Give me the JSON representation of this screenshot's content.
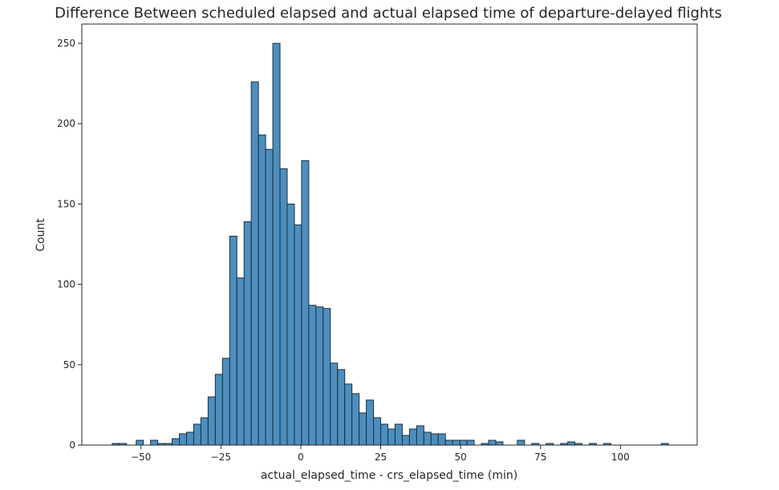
{
  "chart_data": {
    "type": "bar",
    "title": "Difference Between scheduled elapsed and actual elapsed time of departure-delayed flights",
    "xlabel": "actual_elapsed_time - crs_elapsed_time (min)",
    "ylabel": "Count",
    "xlim": [
      -68.5,
      124
    ],
    "ylim": [
      0,
      262
    ],
    "xticks": [
      -50,
      -25,
      0,
      25,
      50,
      75,
      100
    ],
    "xtick_labels": [
      "−50",
      "−25",
      "0",
      "25",
      "50",
      "75",
      "100"
    ],
    "yticks": [
      0,
      50,
      100,
      150,
      200,
      250
    ],
    "ytick_labels": [
      "0",
      "50",
      "100",
      "150",
      "200",
      "250"
    ],
    "grid": false,
    "bin_width": 2.25,
    "bins": [
      {
        "x": -59.0,
        "count": 1
      },
      {
        "x": -56.75,
        "count": 1
      },
      {
        "x": -51.5,
        "count": 3
      },
      {
        "x": -47.0,
        "count": 3
      },
      {
        "x": -44.75,
        "count": 1
      },
      {
        "x": -42.5,
        "count": 1
      },
      {
        "x": -40.25,
        "count": 4
      },
      {
        "x": -38.0,
        "count": 7
      },
      {
        "x": -35.75,
        "count": 8
      },
      {
        "x": -33.5,
        "count": 13
      },
      {
        "x": -31.25,
        "count": 17
      },
      {
        "x": -29.0,
        "count": 30
      },
      {
        "x": -26.75,
        "count": 44
      },
      {
        "x": -24.5,
        "count": 54
      },
      {
        "x": -22.25,
        "count": 130
      },
      {
        "x": -20.0,
        "count": 104
      },
      {
        "x": -17.75,
        "count": 139
      },
      {
        "x": -15.5,
        "count": 226
      },
      {
        "x": -13.25,
        "count": 193
      },
      {
        "x": -11.0,
        "count": 184
      },
      {
        "x": -8.75,
        "count": 250
      },
      {
        "x": -6.5,
        "count": 172
      },
      {
        "x": -4.25,
        "count": 150
      },
      {
        "x": -2.0,
        "count": 137
      },
      {
        "x": 0.25,
        "count": 177
      },
      {
        "x": 2.5,
        "count": 87
      },
      {
        "x": 4.75,
        "count": 86
      },
      {
        "x": 7.0,
        "count": 85
      },
      {
        "x": 9.25,
        "count": 51
      },
      {
        "x": 11.5,
        "count": 47
      },
      {
        "x": 13.75,
        "count": 38
      },
      {
        "x": 16.0,
        "count": 32
      },
      {
        "x": 18.25,
        "count": 20
      },
      {
        "x": 20.5,
        "count": 28
      },
      {
        "x": 22.75,
        "count": 17
      },
      {
        "x": 25.0,
        "count": 13
      },
      {
        "x": 27.25,
        "count": 10
      },
      {
        "x": 29.5,
        "count": 13
      },
      {
        "x": 31.75,
        "count": 6
      },
      {
        "x": 34.0,
        "count": 10
      },
      {
        "x": 36.25,
        "count": 12
      },
      {
        "x": 38.5,
        "count": 8
      },
      {
        "x": 40.75,
        "count": 7
      },
      {
        "x": 43.0,
        "count": 7
      },
      {
        "x": 45.25,
        "count": 3
      },
      {
        "x": 47.5,
        "count": 3
      },
      {
        "x": 49.75,
        "count": 3
      },
      {
        "x": 52.0,
        "count": 3
      },
      {
        "x": 56.5,
        "count": 1
      },
      {
        "x": 58.75,
        "count": 3
      },
      {
        "x": 61.0,
        "count": 2
      },
      {
        "x": 67.75,
        "count": 3
      },
      {
        "x": 72.25,
        "count": 1
      },
      {
        "x": 76.75,
        "count": 1
      },
      {
        "x": 81.25,
        "count": 1
      },
      {
        "x": 83.5,
        "count": 2
      },
      {
        "x": 85.75,
        "count": 1
      },
      {
        "x": 90.25,
        "count": 1
      },
      {
        "x": 94.75,
        "count": 1
      },
      {
        "x": 112.75,
        "count": 1
      }
    ]
  }
}
